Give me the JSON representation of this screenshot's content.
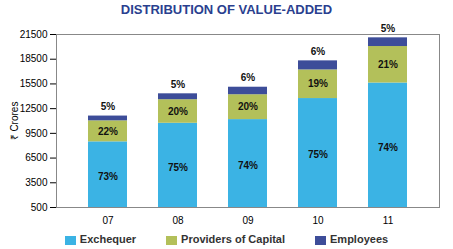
{
  "chart_data": {
    "type": "bar",
    "title": "DISTRIBUTION OF VALUE-ADDED",
    "y_label": "₹ Crores",
    "categories": [
      "07",
      "08",
      "09",
      "10",
      "11"
    ],
    "stacked": true,
    "grid": false,
    "legend": "bottom",
    "ylim": [
      500,
      21500
    ],
    "yticks": [
      500,
      3500,
      6500,
      9500,
      12500,
      15500,
      18500,
      21500
    ],
    "series": [
      {
        "name": "Exchequer",
        "color": "#3bb3e4",
        "values": [
          8470,
          10725,
          11170,
          13725,
          15610
        ],
        "share_labels": [
          "73%",
          "75%",
          "74%",
          "75%",
          "74%"
        ]
      },
      {
        "name": "Providers of Capital",
        "color": "#b3c05a",
        "values": [
          2550,
          2860,
          3020,
          3475,
          4430
        ],
        "share_labels": [
          "22%",
          "20%",
          "20%",
          "19%",
          "21%"
        ]
      },
      {
        "name": "Employees",
        "color": "#3d4d99",
        "values": [
          580,
          715,
          910,
          1100,
          1055
        ],
        "share_labels": [
          "5%",
          "5%",
          "6%",
          "6%",
          "5%"
        ]
      }
    ]
  }
}
